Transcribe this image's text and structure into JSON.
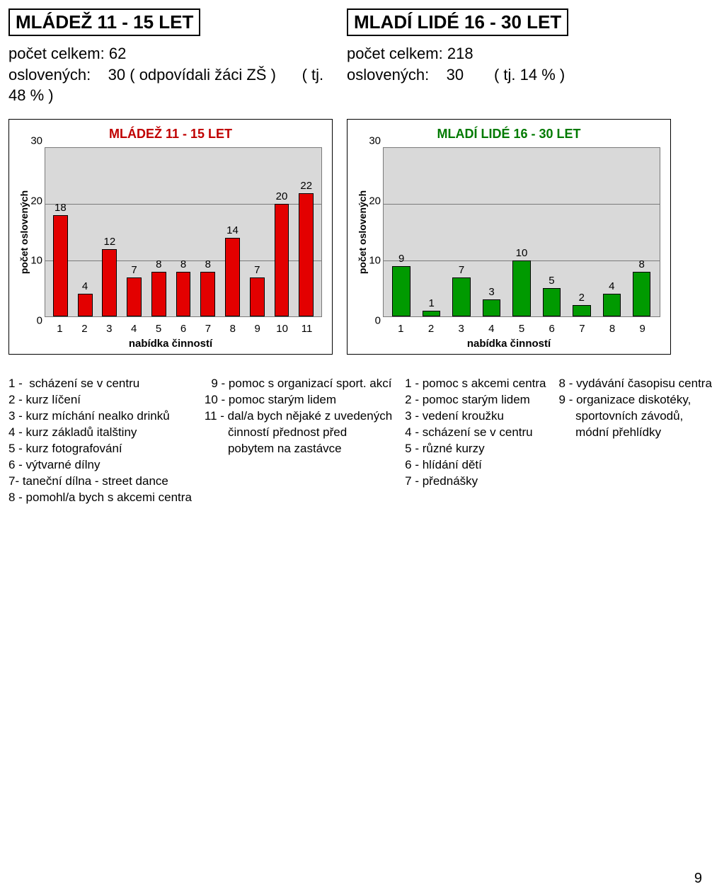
{
  "left_header": {
    "title": "MLÁDEŽ 11 - 15 LET",
    "line1_label": "počet celkem:",
    "line1_value": "62",
    "line2_label": "oslovených:",
    "line2_value": "30 ( odpovídali žáci ZŠ )",
    "line2_suffix": "( tj. 48 % )"
  },
  "right_header": {
    "title": "MLADÍ LIDÉ 16 - 30 LET",
    "line1_label": "počet celkem:",
    "line1_value": "218",
    "line2_label": "oslovených:",
    "line2_value": "30",
    "line2_suffix": "( tj. 14 % )"
  },
  "chart_left": {
    "title": "MLÁDEŽ 11 - 15 LET",
    "title_color": "#c00000",
    "bar_color": "#e30000",
    "bar_border": "#000000",
    "plot_bg": "#d9d9d9",
    "grid_color": "#7a7a7a",
    "ylim": 30,
    "ytick_step": 10,
    "ylabel": "počet oslovených",
    "xlabel": "nabídka činností",
    "categories": [
      "1",
      "2",
      "3",
      "4",
      "5",
      "6",
      "7",
      "8",
      "9",
      "10",
      "11"
    ],
    "values": [
      18,
      4,
      12,
      7,
      8,
      8,
      8,
      14,
      7,
      20,
      22
    ]
  },
  "chart_right": {
    "title": "MLADÍ LIDÉ 16 - 30 LET",
    "title_color": "#007a00",
    "bar_color": "#009a00",
    "bar_border": "#000000",
    "plot_bg": "#d9d9d9",
    "grid_color": "#7a7a7a",
    "ylim": 30,
    "ytick_step": 10,
    "ylabel": "počet oslovených",
    "xlabel": "nabídka činností",
    "categories": [
      "1",
      "2",
      "3",
      "4",
      "5",
      "6",
      "7",
      "8",
      "9"
    ],
    "values": [
      9,
      1,
      7,
      3,
      10,
      5,
      2,
      4,
      8
    ]
  },
  "legend": {
    "col1": [
      "1 -  scházení se v centru",
      "2 - kurz líčení",
      "3 - kurz míchání nealko drinků",
      "4 - kurz základů italštiny",
      "5 - kurz fotografování",
      "6 - výtvarné dílny",
      "7- taneční dílna - street dance",
      "8 - pomohl/a bych s akcemi centra"
    ],
    "col2": [
      "  9 - pomoc s organizací sport. akcí",
      "10 - pomoc starým lidem",
      "11 - dal/a bych nějaké z uvedených",
      "       činností přednost před",
      "       pobytem na zastávce"
    ],
    "col3": [
      "1 - pomoc s akcemi centra",
      "2 - pomoc starým lidem",
      "3 - vedení kroužku",
      "4 - scházení se v centru",
      "5 - různé kurzy",
      "6 - hlídání dětí",
      "7 - přednášky"
    ],
    "col4": [
      "8 - vydávání časopisu centra",
      "9 - organizace diskotéky,",
      "     sportovních závodů,",
      "     módní přehlídky"
    ]
  },
  "page_number": "9"
}
